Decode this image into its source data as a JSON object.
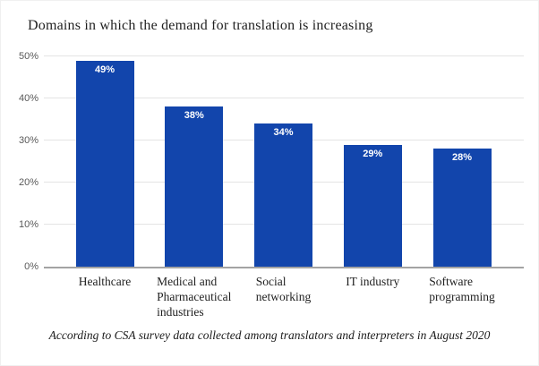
{
  "title": "Domains in which the demand for translation is increasing",
  "source_note": "According to CSA survey data collected among translators and interpreters in August 2020",
  "chart_data": {
    "type": "bar",
    "title": "Domains in which the demand for translation is increasing",
    "categories": [
      "Healthcare",
      "Medical and Pharmaceutical industries",
      "Social networking",
      "IT industry",
      "Software programming"
    ],
    "category_lines": [
      [
        "Healthcare"
      ],
      [
        "Medical and",
        "Pharmaceutical",
        "industries"
      ],
      [
        "Social",
        "networking"
      ],
      [
        "IT industry"
      ],
      [
        "Software",
        "programming"
      ]
    ],
    "values": [
      49,
      38,
      34,
      29,
      28
    ],
    "bar_labels": [
      "49%",
      "38%",
      "34%",
      "29%",
      "28%"
    ],
    "xlabel": "",
    "ylabel": "",
    "ylim": [
      0,
      50
    ],
    "ytick_values": [
      0,
      10,
      20,
      30,
      40,
      50
    ],
    "ytick_labels": [
      "0%",
      "10%",
      "20%",
      "30%",
      "40%",
      "50%"
    ],
    "grid": true,
    "legend": false,
    "bar_color": "#1245ac",
    "bar_label_color": "#ffffff",
    "source_note": "According to CSA survey data collected among translators and interpreters in August 2020"
  },
  "colors": {
    "background": "#ffffff",
    "bar": "#1245ac",
    "gridline": "#e4e4e4",
    "axis_line": "#a3a3a3",
    "ytick_text": "#595959",
    "text": "#1f1f1f"
  }
}
